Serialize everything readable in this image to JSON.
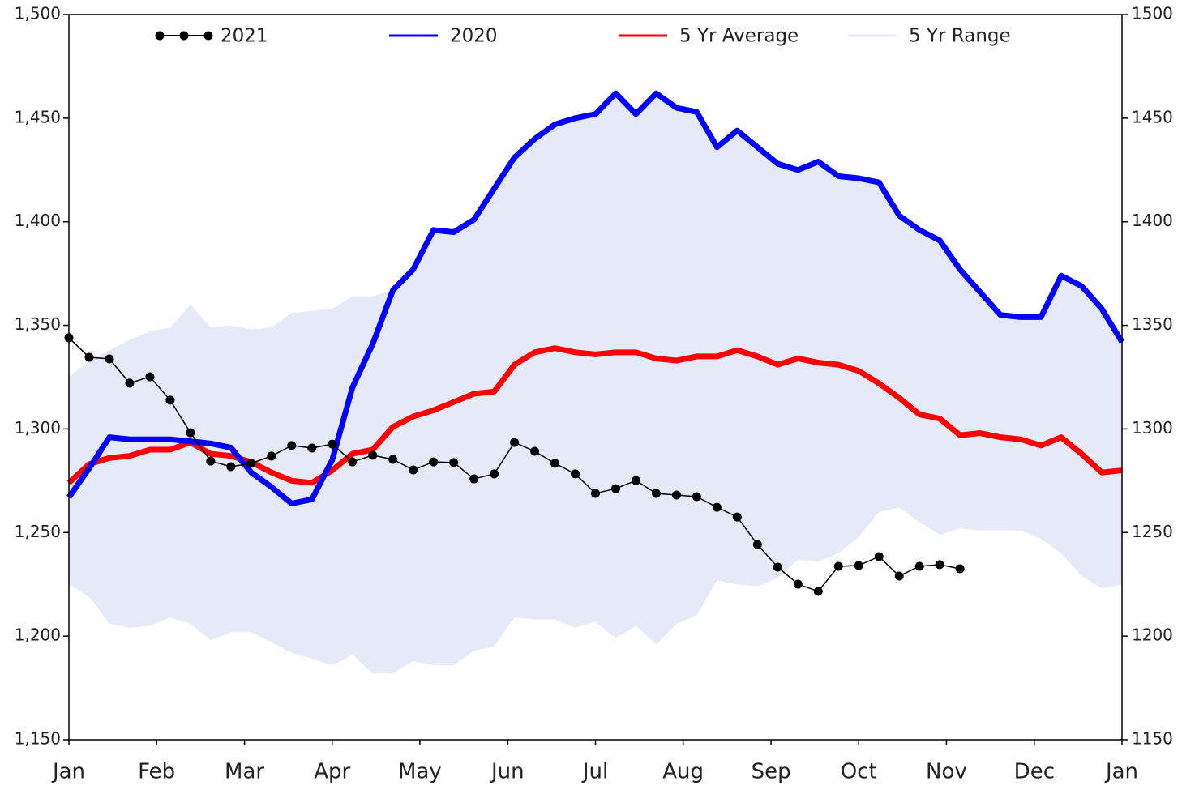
{
  "chart_data": {
    "type": "line",
    "x": [
      0,
      1,
      2,
      3,
      4,
      5,
      6,
      7,
      8,
      9,
      10,
      11,
      12,
      13,
      14,
      15,
      16,
      17,
      18,
      19,
      20,
      21,
      22,
      23,
      24,
      25,
      26,
      27,
      28,
      29,
      30,
      31,
      32,
      33,
      34,
      35,
      36,
      37,
      38,
      39,
      40,
      41,
      42,
      43,
      44,
      45,
      46,
      47,
      48,
      49,
      50,
      51,
      52
    ],
    "xlim": [
      0,
      52
    ],
    "xticks": [
      {
        "value": 0,
        "label": "Jan"
      },
      {
        "value": 4.33,
        "label": "Feb"
      },
      {
        "value": 8.67,
        "label": "Mar"
      },
      {
        "value": 13,
        "label": "Apr"
      },
      {
        "value": 17.33,
        "label": "May"
      },
      {
        "value": 21.67,
        "label": "Jun"
      },
      {
        "value": 26,
        "label": "Jul"
      },
      {
        "value": 30.33,
        "label": "Aug"
      },
      {
        "value": 34.67,
        "label": "Sep"
      },
      {
        "value": 39,
        "label": "Oct"
      },
      {
        "value": 43.33,
        "label": "Nov"
      },
      {
        "value": 47.67,
        "label": "Dec"
      },
      {
        "value": 52,
        "label": "Jan"
      }
    ],
    "ylim": [
      1150,
      1500
    ],
    "yticks": [
      {
        "value": 1150,
        "label": "1,150"
      },
      {
        "value": 1200,
        "label": "1,200"
      },
      {
        "value": 1250,
        "label": "1,250"
      },
      {
        "value": 1300,
        "label": "1,300"
      },
      {
        "value": 1350,
        "label": "1,350"
      },
      {
        "value": 1400,
        "label": "1,400"
      },
      {
        "value": 1450,
        "label": "1,450"
      },
      {
        "value": 1500,
        "label": "1,500"
      }
    ],
    "y2lim": [
      1150,
      1500
    ],
    "y2ticks": [
      1150,
      1200,
      1250,
      1300,
      1350,
      1400,
      1450,
      1500
    ],
    "legend": "top",
    "series": [
      {
        "name": "2021",
        "color": "#000000",
        "markers": true,
        "values": [
          1344,
          1334.6,
          1333.8,
          1322.1,
          1325.2,
          1313.9,
          1298.2,
          1284.5,
          1281.8,
          1283.4,
          1286.9,
          1292,
          1290.8,
          1292.7,
          1284.1,
          1287.3,
          1285.3,
          1280.2,
          1284.1,
          1283.8,
          1275.9,
          1278.3,
          1293.5,
          1289.2,
          1283.4,
          1278.3,
          1268.9,
          1271.2,
          1275.1,
          1268.9,
          1268.1,
          1267.3,
          1262.2,
          1257.5,
          1244.2,
          1233.3,
          1225.1,
          1221.6,
          1233.7,
          1234.1,
          1238.4,
          1229,
          1233.7,
          1234.5,
          1232.5,
          null,
          null,
          null,
          null,
          null,
          null,
          null,
          null
        ]
      },
      {
        "name": "2020",
        "color": "#0000ff",
        "values": [
          1267,
          1281,
          1296,
          1295,
          1295,
          1295,
          1294,
          1293,
          1291,
          1279,
          1272,
          1264,
          1266,
          1285,
          1320,
          1341,
          1367,
          1377,
          1396,
          1395,
          1401,
          1416,
          1431,
          1440,
          1447,
          1450,
          1452,
          1462,
          1452,
          1462,
          1455,
          1453,
          1436,
          1444,
          1436,
          1428,
          1425,
          1429,
          1422,
          1421,
          1419,
          1403,
          1396,
          1391,
          1377,
          1366,
          1355,
          1354,
          1354,
          1374,
          1369,
          1358,
          1342
        ]
      },
      {
        "name": "5 Yr Average",
        "color": "#ff0000",
        "values": [
          1274,
          1283,
          1286,
          1287,
          1290,
          1290,
          1293.5,
          1288,
          1287,
          1284,
          1279,
          1275,
          1274,
          1280,
          1288,
          1290,
          1301,
          1306,
          1309,
          1313,
          1317,
          1318,
          1331,
          1337,
          1339,
          1337,
          1336,
          1337,
          1337,
          1334,
          1333,
          1335,
          1335,
          1338,
          1335,
          1331,
          1334,
          1332,
          1331,
          1328,
          1322,
          1315,
          1307,
          1305,
          1297,
          1298,
          1296,
          1295,
          1292,
          1296,
          1288,
          1279,
          1280
        ]
      },
      {
        "name": "5 Yr Range",
        "color": "#e6e9f7",
        "area": true,
        "upper": [
          1325,
          1333,
          1338,
          1343,
          1347,
          1349,
          1360,
          1349,
          1350,
          1348,
          1349,
          1356,
          1357,
          1358,
          1364,
          1364,
          1367,
          1377,
          1396,
          1395,
          1401,
          1416,
          1431,
          1440,
          1447,
          1450,
          1452,
          1462,
          1452,
          1462,
          1455,
          1453,
          1436,
          1444,
          1436,
          1428,
          1425,
          1429,
          1422,
          1421,
          1419,
          1403,
          1396,
          1391,
          1377,
          1366,
          1355,
          1354,
          1354,
          1374,
          1369,
          1358,
          1342
        ],
        "lower": [
          1225,
          1219,
          1206,
          1204,
          1205,
          1209,
          1206,
          1198,
          1202,
          1202,
          1197,
          1192,
          1189,
          1186,
          1191,
          1182,
          1182,
          1188,
          1186,
          1186,
          1193,
          1195,
          1209,
          1208,
          1208,
          1204,
          1207,
          1199,
          1205,
          1196,
          1206,
          1210,
          1227,
          1225,
          1224,
          1228,
          1237,
          1236,
          1240,
          1248,
          1260,
          1262,
          1255,
          1249,
          1252,
          1251,
          1251,
          1251,
          1247,
          1240,
          1229,
          1223,
          1225
        ]
      }
    ]
  }
}
